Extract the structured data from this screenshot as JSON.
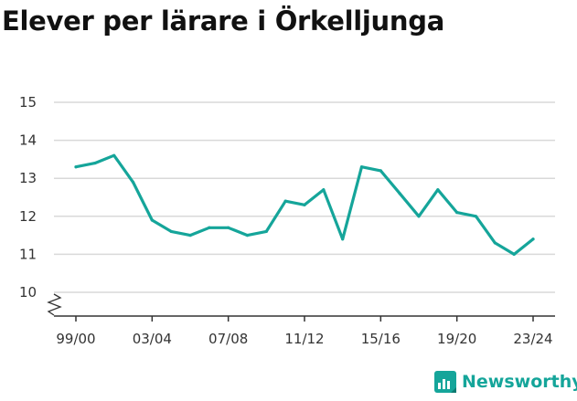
{
  "chart_data": {
    "type": "line",
    "title": "Elever per lärare i Örkelljunga",
    "xlabel": "",
    "ylabel": "",
    "x": [
      "99/00",
      "00/01",
      "01/02",
      "02/03",
      "03/04",
      "04/05",
      "05/06",
      "06/07",
      "07/08",
      "08/09",
      "09/10",
      "10/11",
      "11/12",
      "12/13",
      "13/14",
      "14/15",
      "15/16",
      "16/17",
      "17/18",
      "18/19",
      "19/20",
      "20/21",
      "21/22",
      "22/23",
      "23/24"
    ],
    "x_tick_labels": [
      "99/00",
      "03/04",
      "07/08",
      "11/12",
      "15/16",
      "19/20",
      "23/24"
    ],
    "y_ticks": [
      10,
      11,
      12,
      13,
      14,
      15
    ],
    "ylim": [
      9.4,
      15.3
    ],
    "axis_break": true,
    "grid": true,
    "series": [
      {
        "values": [
          13.3,
          13.4,
          13.6,
          12.9,
          11.9,
          11.6,
          11.5,
          11.7,
          11.7,
          11.5,
          11.6,
          12.4,
          12.3,
          12.7,
          11.4,
          13.3,
          13.2,
          12.6,
          12.0,
          12.7,
          12.1,
          12.0,
          11.3,
          11.0,
          11.4
        ]
      }
    ]
  },
  "colors": {
    "line": "#15a59a",
    "grid": "#d9d9d9",
    "axis": "#333333",
    "title": "#111111",
    "brand": "#15a59a"
  },
  "brand": {
    "name": "Newsworthy",
    "icon": "newsworthy-logo-icon"
  }
}
